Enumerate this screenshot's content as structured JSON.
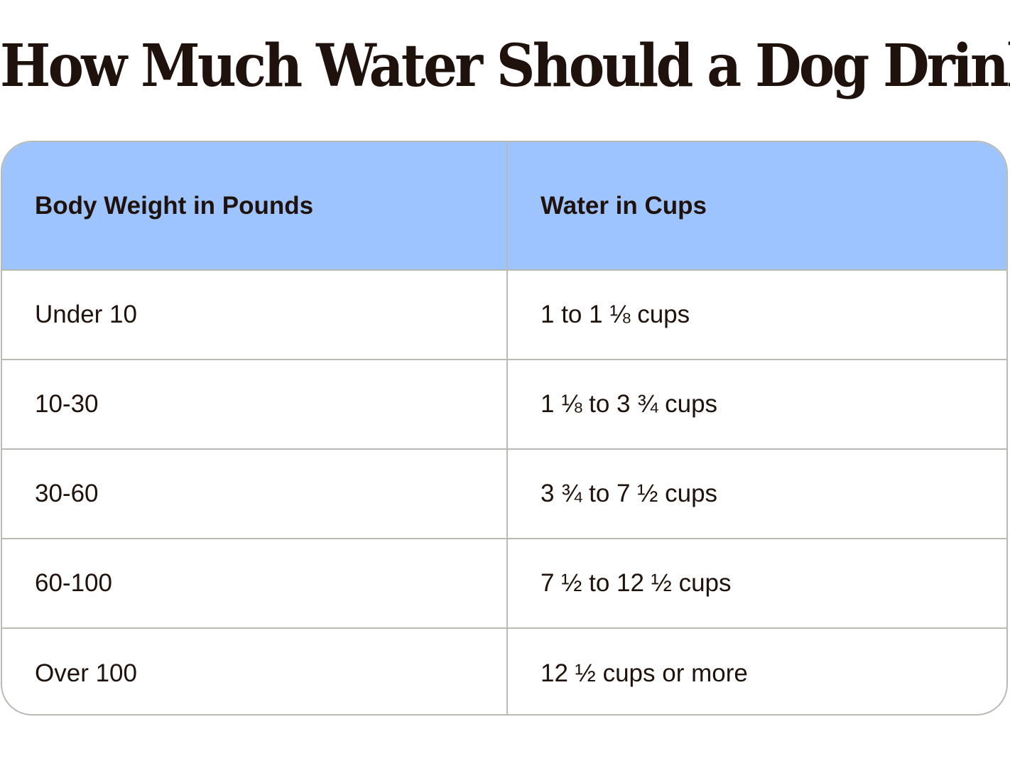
{
  "title": "How Much Water Should a Dog Drink",
  "table": {
    "headers": [
      "Body Weight in Pounds",
      "Water in Cups"
    ],
    "rows": [
      [
        "Under 10",
        "1 to 1 ⅛ cups"
      ],
      [
        "10-30",
        "1 ⅛ to 3 ¾ cups"
      ],
      [
        "30-60",
        "3 ¾ to 7 ½ cups"
      ],
      [
        "60-100",
        "7 ½ to 12 ½ cups"
      ],
      [
        "Over 100",
        "12 ½ cups or more"
      ]
    ]
  },
  "colors": {
    "header_background": "#9ec4ff",
    "text": "#1f120c",
    "border": "#b7bbb3",
    "background": "#ffffff"
  }
}
